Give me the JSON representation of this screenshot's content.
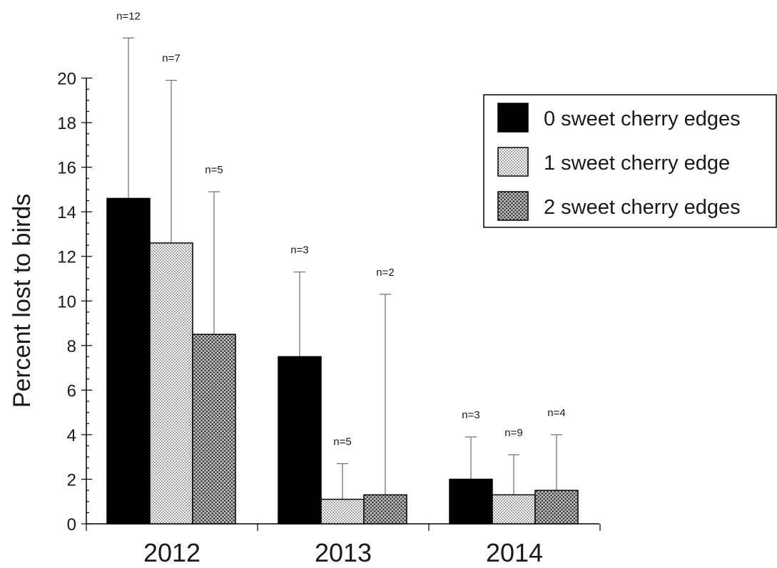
{
  "chart_data": {
    "type": "bar",
    "title": "",
    "xlabel": "",
    "ylabel": "Percent lost to birds",
    "categories": [
      "2012",
      "2013",
      "2014"
    ],
    "ylim": [
      0,
      22
    ],
    "yticks": [
      0,
      2,
      4,
      6,
      8,
      10,
      12,
      14,
      16,
      18,
      20
    ],
    "grid": false,
    "legend_position": "top-right",
    "error_bars": "upper",
    "series": [
      {
        "name": "0 sweet cherry edges",
        "fill": "solid-black",
        "color": "#000000",
        "values": [
          14.6,
          7.5,
          2.0
        ],
        "error_upper": [
          21.8,
          11.3,
          3.9
        ],
        "n_labels": [
          "n=12",
          "n=3",
          "n=3"
        ]
      },
      {
        "name": "1 sweet cherry edge",
        "fill": "dotted",
        "color": "#ffffff",
        "values": [
          12.6,
          1.1,
          1.3
        ],
        "error_upper": [
          19.9,
          2.7,
          3.1
        ],
        "n_labels": [
          "n=7",
          "n=5",
          "n=9"
        ]
      },
      {
        "name": "2 sweet cherry edges",
        "fill": "crosshatch",
        "color": "#555555",
        "values": [
          8.5,
          1.3,
          1.5
        ],
        "error_upper": [
          14.9,
          10.3,
          4.0
        ],
        "n_labels": [
          "n=5",
          "n=2",
          "n=4"
        ]
      }
    ]
  }
}
